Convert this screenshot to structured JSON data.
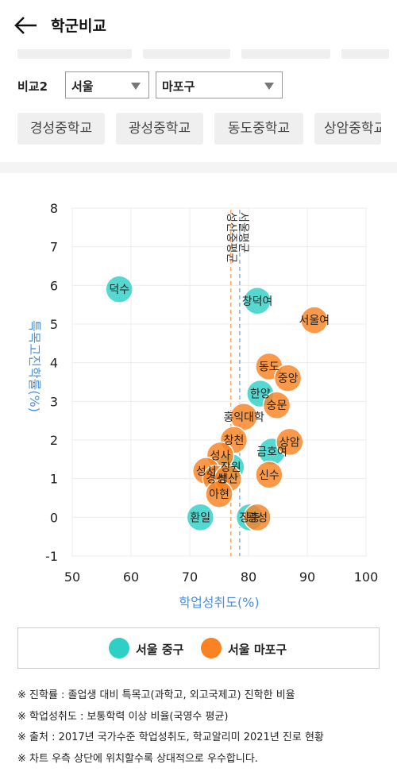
{
  "header": {
    "title": "학군비교"
  },
  "compare": {
    "label": "비교2",
    "city": "서울",
    "district": "마포구"
  },
  "schools": [
    "경성중학교",
    "광성중학교",
    "동도중학교",
    "상암중학교"
  ],
  "legend": [
    {
      "label": "서울 중구",
      "color": "#2ecfc4"
    },
    {
      "label": "서울 마포구",
      "color": "#f98222"
    }
  ],
  "notes": [
    "※ 진학률 : 졸업생 대비 특목고(과학고, 외고국제고) 진학한 비율",
    "※ 학업성취도 : 보통학력 이상 비율(국영수 평균)",
    "※ 출처 : 2017년 국가수준 학업성취도, 학교알리미 2021년 진로 현황",
    "※ 차트 우측 상단에 위치할수록 상대적으로 우수합니다."
  ],
  "chart_data": {
    "type": "scatter",
    "xlabel": "학업성취도(%)",
    "ylabel": "특목고진학률(%)",
    "xlim": [
      50,
      100
    ],
    "ylim": [
      -1,
      8
    ],
    "xticks": [
      50,
      60,
      70,
      80,
      90,
      100
    ],
    "yticks": [
      -1,
      0,
      1,
      2,
      3,
      4,
      5,
      6,
      7,
      8
    ],
    "grid": true,
    "reference_lines": [
      {
        "label": "성산중평균",
        "x": 77.0,
        "color": "#f98222"
      },
      {
        "label": "서울평균",
        "x": 78.5,
        "color": "#4a90d9"
      }
    ],
    "series": [
      {
        "name": "서울 중구",
        "color": "#2ecfc4",
        "points": [
          {
            "label": "덕수",
            "x": 58.0,
            "y": 5.9
          },
          {
            "label": "창덕여",
            "x": 81.5,
            "y": 5.6
          },
          {
            "label": "한양",
            "x": 82.0,
            "y": 3.2
          },
          {
            "label": "금호여",
            "x": 84.0,
            "y": 1.7
          },
          {
            "label": "장원",
            "x": 77.0,
            "y": 1.3
          },
          {
            "label": "환일",
            "x": 71.8,
            "y": 0.0
          },
          {
            "label": "장충",
            "x": 80.2,
            "y": 0.0
          }
        ]
      },
      {
        "name": "서울 마포구",
        "color": "#f98222",
        "points": [
          {
            "label": "서울여",
            "x": 91.2,
            "y": 5.1
          },
          {
            "label": "동도",
            "x": 83.5,
            "y": 3.9
          },
          {
            "label": "중앙",
            "x": 86.7,
            "y": 3.6
          },
          {
            "label": "숭문",
            "x": 84.8,
            "y": 2.9
          },
          {
            "label": "홍익대학",
            "x": 79.2,
            "y": 2.6
          },
          {
            "label": "상암",
            "x": 87.0,
            "y": 1.95
          },
          {
            "label": "창천",
            "x": 77.5,
            "y": 2.0
          },
          {
            "label": "성사",
            "x": 75.2,
            "y": 1.6
          },
          {
            "label": "신수",
            "x": 83.5,
            "y": 1.1
          },
          {
            "label": "성서",
            "x": 72.8,
            "y": 1.2
          },
          {
            "label": "경성",
            "x": 74.5,
            "y": 1.0
          },
          {
            "label": "성산",
            "x": 76.5,
            "y": 1.0
          },
          {
            "label": "아현",
            "x": 75.0,
            "y": 0.6
          },
          {
            "label": "광성",
            "x": 81.5,
            "y": 0.0
          }
        ]
      }
    ]
  }
}
